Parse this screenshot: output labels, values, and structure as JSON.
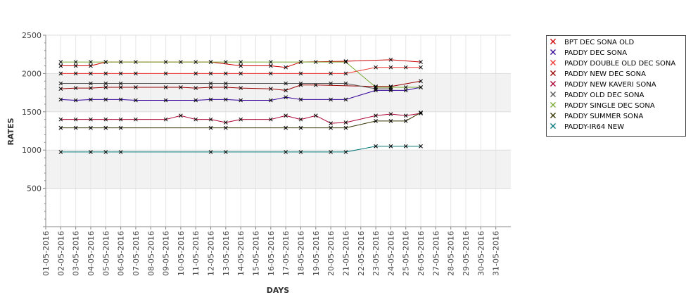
{
  "chart_data": {
    "type": "line",
    "title": "",
    "xlabel": "DAYS",
    "ylabel": "RATES",
    "ylim": [
      0,
      2500
    ],
    "yticks": [
      500,
      1000,
      1500,
      2000,
      2500
    ],
    "grid": true,
    "legend_position": "right",
    "categories": [
      "01-05-2016",
      "02-05-2016",
      "03-05-2016",
      "04-05-2016",
      "05-05-2016",
      "06-05-2016",
      "07-05-2016",
      "08-05-2016",
      "09-05-2016",
      "10-05-2016",
      "11-05-2016",
      "12-05-2016",
      "13-05-2016",
      "14-05-2016",
      "15-05-2016",
      "16-05-2016",
      "17-05-2016",
      "18-05-2016",
      "19-05-2016",
      "20-05-2016",
      "21-05-2016",
      "22-05-2016",
      "23-05-2016",
      "24-05-2016",
      "25-05-2016",
      "26-05-2016",
      "27-05-2016",
      "28-05-2016",
      "29-05-2016",
      "30-05-2016",
      "31-05-2016"
    ],
    "series": [
      {
        "name": "BPT DEC SONA OLD",
        "color": "#cc0000",
        "x": [
          "02-05-2016",
          "03-05-2016",
          "04-05-2016",
          "05-05-2016",
          "12-05-2016",
          "14-05-2016",
          "16-05-2016",
          "17-05-2016",
          "18-05-2016",
          "21-05-2016",
          "24-05-2016",
          "26-05-2016"
        ],
        "values": [
          2100,
          2100,
          2100,
          2150,
          2150,
          2100,
          2100,
          2080,
          2150,
          2160,
          2180,
          2150
        ]
      },
      {
        "name": "PADDY DEC SONA",
        "color": "#330099",
        "x": [
          "02-05-2016",
          "03-05-2016",
          "04-05-2016",
          "05-05-2016",
          "06-05-2016",
          "07-05-2016",
          "09-05-2016",
          "11-05-2016",
          "12-05-2016",
          "13-05-2016",
          "14-05-2016",
          "16-05-2016",
          "17-05-2016",
          "18-05-2016",
          "20-05-2016",
          "21-05-2016",
          "23-05-2016",
          "24-05-2016",
          "25-05-2016",
          "26-05-2016"
        ],
        "values": [
          1660,
          1650,
          1660,
          1660,
          1660,
          1650,
          1650,
          1650,
          1660,
          1660,
          1650,
          1650,
          1690,
          1660,
          1660,
          1660,
          1780,
          1780,
          1780,
          1820
        ]
      },
      {
        "name": "PADDY DOUBLE OLD DEC SONA",
        "color": "#ee3333",
        "x": [
          "02-05-2016",
          "03-05-2016",
          "04-05-2016",
          "05-05-2016",
          "06-05-2016",
          "07-05-2016",
          "09-05-2016",
          "11-05-2016",
          "12-05-2016",
          "13-05-2016",
          "14-05-2016",
          "16-05-2016",
          "18-05-2016",
          "20-05-2016",
          "21-05-2016",
          "23-05-2016",
          "24-05-2016",
          "25-05-2016",
          "26-05-2016"
        ],
        "values": [
          2000,
          2000,
          2000,
          2000,
          2000,
          2000,
          2000,
          2000,
          2000,
          2000,
          2000,
          2000,
          2000,
          2000,
          2000,
          2080,
          2080,
          2080,
          2080
        ]
      },
      {
        "name": "PADDY NEW DEC SONA",
        "color": "#990000",
        "x": [
          "02-05-2016",
          "03-05-2016",
          "04-05-2016",
          "05-05-2016",
          "06-05-2016",
          "07-05-2016",
          "09-05-2016",
          "10-05-2016",
          "11-05-2016",
          "12-05-2016",
          "13-05-2016",
          "14-05-2016",
          "16-05-2016",
          "17-05-2016",
          "18-05-2016",
          "19-05-2016",
          "23-05-2016",
          "24-05-2016",
          "26-05-2016"
        ],
        "values": [
          1800,
          1810,
          1810,
          1820,
          1820,
          1820,
          1820,
          1820,
          1810,
          1820,
          1820,
          1810,
          1800,
          1780,
          1850,
          1850,
          1830,
          1830,
          1900
        ]
      },
      {
        "name": "PADDY NEW KAVERI SONA",
        "color": "#aa0033",
        "x": [
          "02-05-2016",
          "03-05-2016",
          "04-05-2016",
          "05-05-2016",
          "06-05-2016",
          "07-05-2016",
          "09-05-2016",
          "10-05-2016",
          "11-05-2016",
          "12-05-2016",
          "13-05-2016",
          "14-05-2016",
          "16-05-2016",
          "17-05-2016",
          "18-05-2016",
          "19-05-2016",
          "20-05-2016",
          "21-05-2016",
          "23-05-2016",
          "24-05-2016",
          "25-05-2016",
          "26-05-2016"
        ],
        "values": [
          1400,
          1400,
          1400,
          1400,
          1400,
          1400,
          1400,
          1450,
          1400,
          1400,
          1360,
          1400,
          1400,
          1450,
          1400,
          1450,
          1350,
          1360,
          1450,
          1470,
          1450,
          1480
        ]
      },
      {
        "name": "PADDY OLD DEC SONA",
        "color": "#555555",
        "x": [
          "02-05-2016",
          "04-05-2016",
          "05-05-2016",
          "06-05-2016",
          "12-05-2016",
          "13-05-2016",
          "17-05-2016",
          "18-05-2016",
          "20-05-2016",
          "21-05-2016",
          "23-05-2016",
          "24-05-2016"
        ],
        "values": [
          1870,
          1870,
          1870,
          1870,
          1870,
          1870,
          1870,
          1870,
          1870,
          1870,
          1800,
          1800
        ]
      },
      {
        "name": "PADDY SINGLE DEC SONA",
        "color": "#77aa33",
        "x": [
          "02-05-2016",
          "03-05-2016",
          "04-05-2016",
          "05-05-2016",
          "06-05-2016",
          "07-05-2016",
          "09-05-2016",
          "10-05-2016",
          "11-05-2016",
          "12-05-2016",
          "13-05-2016",
          "14-05-2016",
          "16-05-2016",
          "18-05-2016",
          "19-05-2016",
          "20-05-2016",
          "21-05-2016",
          "23-05-2016",
          "24-05-2016",
          "25-05-2016",
          "26-05-2016"
        ],
        "values": [
          2150,
          2150,
          2150,
          2150,
          2150,
          2150,
          2150,
          2150,
          2150,
          2150,
          2150,
          2150,
          2150,
          2150,
          2150,
          2150,
          2150,
          1820,
          1820,
          1820,
          1820
        ]
      },
      {
        "name": "PADDY SUMMER SONA",
        "color": "#333300",
        "x": [
          "02-05-2016",
          "03-05-2016",
          "04-05-2016",
          "05-05-2016",
          "06-05-2016",
          "12-05-2016",
          "13-05-2016",
          "17-05-2016",
          "18-05-2016",
          "20-05-2016",
          "21-05-2016",
          "23-05-2016",
          "24-05-2016",
          "25-05-2016",
          "26-05-2016"
        ],
        "values": [
          1290,
          1290,
          1290,
          1290,
          1290,
          1290,
          1290,
          1290,
          1290,
          1290,
          1290,
          1380,
          1380,
          1380,
          1490
        ]
      },
      {
        "name": "PADDY-IR64 NEW",
        "color": "#007777",
        "x": [
          "02-05-2016",
          "04-05-2016",
          "05-05-2016",
          "06-05-2016",
          "12-05-2016",
          "13-05-2016",
          "17-05-2016",
          "18-05-2016",
          "20-05-2016",
          "21-05-2016",
          "23-05-2016",
          "24-05-2016",
          "25-05-2016",
          "26-05-2016"
        ],
        "values": [
          975,
          975,
          975,
          975,
          975,
          975,
          975,
          975,
          975,
          975,
          1050,
          1050,
          1050,
          1050
        ]
      }
    ]
  }
}
